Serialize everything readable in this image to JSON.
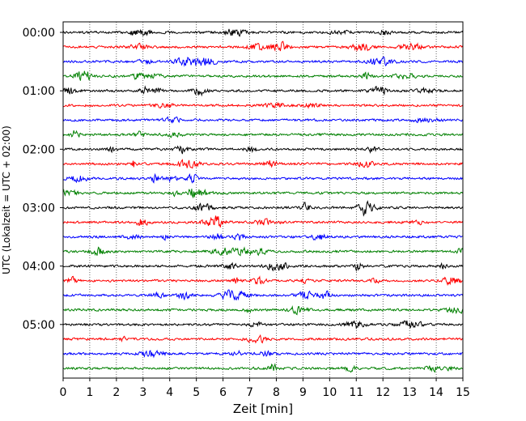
{
  "chart_data": {
    "type": "line",
    "title": "",
    "xlabel": "Zeit  [min]",
    "ylabel": "UTC (Lokalzeit = UTC + 02:00)",
    "xlim": [
      0,
      15
    ],
    "x_ticks": [
      0,
      1,
      2,
      3,
      4,
      5,
      6,
      7,
      8,
      9,
      10,
      11,
      12,
      13,
      14,
      15
    ],
    "y_tick_labels": [
      "00:00",
      "01:00",
      "02:00",
      "03:00",
      "04:00",
      "05:00"
    ],
    "grid": "vertical dotted lines at each minute",
    "trace_colors": [
      "#000000",
      "#ff0000",
      "#0000ff",
      "#008000"
    ],
    "traces": [
      {
        "start": "00:00"
      },
      {
        "start": "00:15"
      },
      {
        "start": "00:30"
      },
      {
        "start": "00:45"
      },
      {
        "start": "01:00"
      },
      {
        "start": "01:15"
      },
      {
        "start": "01:30"
      },
      {
        "start": "01:45"
      },
      {
        "start": "02:00"
      },
      {
        "start": "02:15"
      },
      {
        "start": "02:30"
      },
      {
        "start": "02:45"
      },
      {
        "start": "03:00"
      },
      {
        "start": "03:15"
      },
      {
        "start": "03:30"
      },
      {
        "start": "03:45"
      },
      {
        "start": "04:00"
      },
      {
        "start": "04:15"
      },
      {
        "start": "04:30"
      },
      {
        "start": "04:45"
      },
      {
        "start": "05:00"
      },
      {
        "start": "05:15"
      },
      {
        "start": "05:30"
      },
      {
        "start": "05:45"
      }
    ]
  }
}
